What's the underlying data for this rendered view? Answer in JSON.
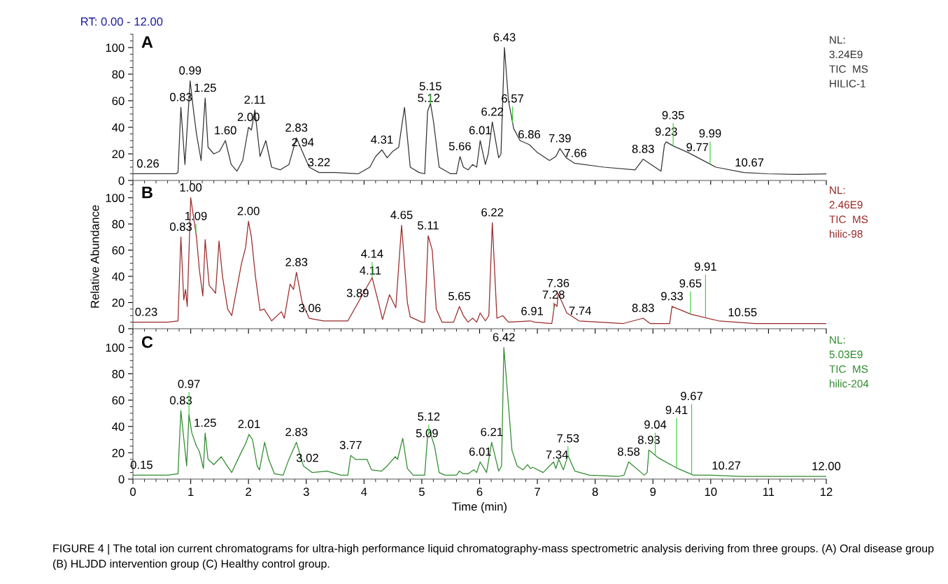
{
  "chart_data": [
    {
      "type": "line",
      "title": "A",
      "color": "#333333",
      "x": [
        0,
        0.3,
        0.6,
        0.75,
        0.78,
        0.83,
        0.9,
        0.99,
        1.05,
        1.1,
        1.18,
        1.25,
        1.3,
        1.4,
        1.5,
        1.6,
        1.7,
        1.8,
        1.9,
        2.0,
        2.05,
        2.11,
        2.2,
        2.3,
        2.4,
        2.55,
        2.7,
        2.83,
        2.94,
        3.05,
        3.22,
        3.5,
        3.9,
        4.1,
        4.2,
        4.31,
        4.4,
        4.5,
        4.6,
        4.7,
        4.8,
        4.95,
        5.05,
        5.1,
        5.15,
        5.2,
        5.3,
        5.5,
        5.6,
        5.66,
        5.72,
        5.8,
        5.88,
        5.95,
        6.01,
        6.1,
        6.15,
        6.22,
        6.33,
        6.37,
        6.43,
        6.5,
        6.59,
        6.7,
        6.86,
        7.0,
        7.21,
        7.32,
        7.39,
        7.5,
        7.64,
        8.15,
        8.69,
        8.83,
        8.9,
        9.14,
        9.2,
        9.23,
        9.35,
        9.61,
        10.09,
        10.57,
        10.98,
        11.5,
        12
      ],
      "values": [
        5,
        5,
        5,
        5,
        6,
        55,
        12,
        75,
        52,
        35,
        15,
        62,
        25,
        20,
        22,
        30,
        12,
        7,
        15,
        40,
        38,
        53,
        18,
        30,
        10,
        8,
        12,
        32,
        21,
        10,
        6,
        6,
        5,
        10,
        18,
        23,
        17,
        22,
        25,
        55,
        10,
        6,
        5,
        52,
        58,
        45,
        10,
        5,
        5,
        18,
        10,
        8,
        12,
        10,
        30,
        12,
        20,
        44,
        17,
        20,
        100,
        60,
        39,
        30,
        27,
        21,
        15,
        18,
        24,
        17,
        13,
        10,
        8,
        16,
        14,
        7,
        27,
        29,
        26,
        21,
        10,
        6,
        5,
        4.5,
        5
      ],
      "xlim": [
        0,
        12
      ],
      "xticks": [
        0,
        1,
        2,
        3,
        4,
        5,
        6,
        7,
        8,
        9,
        10,
        11,
        12
      ],
      "ylim": [
        0,
        110
      ],
      "yticks": [
        0,
        20,
        40,
        60,
        80,
        100
      ],
      "tick_labels": "y",
      "annotations": [
        "NL:\n3.24E9\nTIC  MS\nHILIC-1",
        "RT: 0.00 - 12.00",
        {
          "text": "0.26",
          "x": 0.26,
          "y": 5
        },
        {
          "text": "0.83",
          "x": 0.83,
          "y": 55
        },
        {
          "text": "0.99",
          "x": 0.99,
          "y": 75
        },
        {
          "text": "1.25",
          "x": 1.25,
          "y": 62
        },
        {
          "text": "1.60",
          "x": 1.6,
          "y": 30
        },
        {
          "text": "2.00",
          "x": 2.0,
          "y": 40
        },
        {
          "text": "2.11",
          "x": 2.11,
          "y": 53
        },
        {
          "text": "2.83",
          "x": 2.83,
          "y": 32
        },
        {
          "text": "2.94",
          "x": 2.94,
          "y": 21
        },
        {
          "text": "3.22",
          "x": 3.22,
          "y": 6
        },
        {
          "text": "4.31",
          "x": 4.31,
          "y": 23
        },
        {
          "text": "5.12",
          "x": 5.12,
          "y": 54.4
        },
        {
          "text": "5.15",
          "x": 5.15,
          "y": 58
        },
        {
          "text": "5.66",
          "x": 5.66,
          "y": 18
        },
        {
          "text": "6.01",
          "x": 6.01,
          "y": 30
        },
        {
          "text": "6.22",
          "x": 6.22,
          "y": 44
        },
        {
          "text": "6.43",
          "x": 6.43,
          "y": 100
        },
        {
          "text": "6.57",
          "x": 6.57,
          "y": 43.7
        },
        {
          "text": "6.86",
          "x": 6.86,
          "y": 27
        },
        {
          "text": "7.39",
          "x": 7.39,
          "y": 24
        },
        {
          "text": "7.66",
          "x": 7.66,
          "y": 12.9
        },
        {
          "text": "8.83",
          "x": 8.83,
          "y": 16
        },
        {
          "text": "9.23",
          "x": 9.23,
          "y": 29
        },
        {
          "text": "9.35",
          "x": 9.35,
          "y": 26
        },
        {
          "text": "9.77",
          "x": 9.77,
          "y": 17.3
        },
        {
          "text": "9.99",
          "x": 9.99,
          "y": 12.3
        },
        {
          "text": "10.67",
          "x": 10.67,
          "y": 5.8
        }
      ]
    },
    {
      "type": "line",
      "title": "B",
      "color": "#9b2a2a",
      "ylabel": "Relative Abundance",
      "x": [
        0,
        0.3,
        0.6,
        0.78,
        0.83,
        0.88,
        0.91,
        0.94,
        1.0,
        1.05,
        1.1,
        1.15,
        1.21,
        1.25,
        1.32,
        1.38,
        1.43,
        1.49,
        1.55,
        1.64,
        1.71,
        1.88,
        1.95,
        2.0,
        2.05,
        2.12,
        2.2,
        2.27,
        2.4,
        2.57,
        2.62,
        2.72,
        2.78,
        2.83,
        2.93,
        3.05,
        3.3,
        3.72,
        4.14,
        4.25,
        4.32,
        4.44,
        4.55,
        4.65,
        4.75,
        4.8,
        5.0,
        5.05,
        5.11,
        5.18,
        5.25,
        5.35,
        5.55,
        5.65,
        5.72,
        5.8,
        5.88,
        5.95,
        6.01,
        6.1,
        6.16,
        6.22,
        6.3,
        6.4,
        6.5,
        6.88,
        6.95,
        7.25,
        7.3,
        7.34,
        7.36,
        7.51,
        7.72,
        8.49,
        8.83,
        8.95,
        9.29,
        9.33,
        9.66,
        10.14,
        10.77,
        11.5,
        12
      ],
      "values": [
        5,
        5,
        5,
        6,
        70,
        22,
        30,
        17,
        100,
        85,
        70,
        45,
        25,
        68,
        33,
        30,
        27,
        67,
        40,
        15,
        10,
        50,
        62,
        82,
        70,
        40,
        14,
        15,
        6,
        13,
        8,
        34,
        30,
        43,
        20,
        8,
        6,
        6,
        39,
        20,
        7,
        26,
        16,
        79,
        20,
        9,
        5,
        5,
        71,
        60,
        15,
        5,
        5,
        17,
        10,
        5,
        8,
        5,
        12,
        6,
        10,
        81,
        8,
        10,
        5,
        6,
        5,
        4,
        19,
        17,
        27,
        12,
        6,
        4,
        8,
        4,
        4,
        17,
        11,
        6,
        4,
        4,
        4
      ],
      "xlim": [
        0,
        12
      ],
      "xticks": [
        0,
        1,
        2,
        3,
        4,
        5,
        6,
        7,
        8,
        9,
        10,
        11,
        12
      ],
      "ylim": [
        0,
        110
      ],
      "yticks": [
        0,
        20,
        40,
        60,
        80,
        100
      ],
      "tick_labels": "y",
      "annotations": [
        "NL:\n2.46E9\nTIC  MS\nhilic-98",
        {
          "text": "0.23",
          "x": 0.23,
          "y": 5
        },
        {
          "text": "0.83",
          "x": 0.83,
          "y": 70
        },
        {
          "text": "1.00",
          "x": 1.0,
          "y": 100
        },
        {
          "text": "1.09",
          "x": 1.09,
          "y": 73
        },
        {
          "text": "2.00",
          "x": 2.0,
          "y": 82
        },
        {
          "text": "2.83",
          "x": 2.83,
          "y": 43
        },
        {
          "text": "3.06",
          "x": 3.06,
          "y": 7.9
        },
        {
          "text": "3.89",
          "x": 3.89,
          "y": 19.4
        },
        {
          "text": "4.11",
          "x": 4.11,
          "y": 36.6
        },
        {
          "text": "4.14",
          "x": 4.14,
          "y": 39
        },
        {
          "text": "4.65",
          "x": 4.65,
          "y": 79
        },
        {
          "text": "5.11",
          "x": 5.11,
          "y": 71
        },
        {
          "text": "5.65",
          "x": 5.65,
          "y": 17
        },
        {
          "text": "6.22",
          "x": 6.22,
          "y": 81
        },
        {
          "text": "6.91",
          "x": 6.91,
          "y": 5.6
        },
        {
          "text": "7.28",
          "x": 7.28,
          "y": 13
        },
        {
          "text": "7.36",
          "x": 7.36,
          "y": 27
        },
        {
          "text": "7.74",
          "x": 7.74,
          "y": 5.9
        },
        {
          "text": "8.83",
          "x": 8.83,
          "y": 8
        },
        {
          "text": "9.33",
          "x": 9.33,
          "y": 17
        },
        {
          "text": "9.65",
          "x": 9.65,
          "y": 11.2
        },
        {
          "text": "9.91",
          "x": 9.91,
          "y": 8.4
        },
        {
          "text": "10.55",
          "x": 10.55,
          "y": 4.7
        }
      ]
    },
    {
      "type": "line",
      "title": "C",
      "color": "#2e8b2e",
      "xlabel": "Time (min)",
      "x": [
        0,
        0.3,
        0.6,
        0.78,
        0.83,
        0.93,
        0.97,
        1.02,
        1.1,
        1.15,
        1.22,
        1.25,
        1.3,
        1.4,
        1.53,
        1.6,
        1.71,
        1.87,
        1.95,
        2.01,
        2.07,
        2.15,
        2.19,
        2.28,
        2.35,
        2.45,
        2.6,
        2.69,
        2.83,
        2.95,
        3.1,
        3.36,
        3.6,
        3.72,
        3.77,
        3.85,
        4.05,
        4.13,
        4.3,
        4.4,
        4.54,
        4.58,
        4.67,
        4.75,
        4.85,
        5.05,
        5.1,
        5.14,
        5.22,
        5.3,
        5.4,
        5.6,
        5.65,
        5.72,
        5.8,
        5.9,
        5.95,
        6.01,
        6.12,
        6.21,
        6.33,
        6.38,
        6.42,
        6.52,
        6.56,
        6.65,
        6.75,
        6.83,
        6.88,
        6.92,
        7.1,
        7.28,
        7.32,
        7.37,
        7.45,
        7.53,
        7.65,
        7.9,
        8.4,
        8.5,
        8.58,
        8.85,
        8.9,
        8.93,
        9.1,
        9.43,
        9.7,
        10,
        10.5,
        11,
        12
      ],
      "values": [
        3,
        3,
        3,
        4,
        52,
        10,
        49,
        35,
        25,
        21,
        8,
        35,
        15,
        11,
        17,
        12,
        5,
        20,
        27,
        34,
        30,
        10,
        7,
        28,
        15,
        4,
        3,
        14,
        28,
        10,
        5,
        6,
        3,
        3,
        18,
        15,
        15,
        7,
        6,
        10,
        17,
        15,
        31,
        8,
        3,
        3,
        33,
        36,
        25,
        5,
        3,
        3,
        6,
        4,
        4,
        7,
        5,
        13,
        5,
        28,
        6,
        10,
        100,
        45,
        22,
        10,
        7,
        11,
        8,
        9,
        5,
        13,
        8,
        15,
        7,
        18,
        6,
        3,
        2,
        3,
        13,
        3,
        5,
        22,
        16,
        8,
        3,
        3,
        2,
        2,
        2
      ],
      "xlim": [
        0,
        12
      ],
      "xticks": [
        0,
        1,
        2,
        3,
        4,
        5,
        6,
        7,
        8,
        9,
        10,
        11,
        12
      ],
      "ylim": [
        0,
        110
      ],
      "yticks": [
        0,
        20,
        40,
        60,
        80,
        100
      ],
      "annotations": [
        "NL:\n5.03E9\nTIC  MS\nhilic-204",
        "FIGURE 4 | The total ion current chromatograms for ultra-high performance liquid chromatography-mass spectrometric analysis deriving from three groups. (A) Oral disease group (B) HLJDD intervention group (C) Healthy control group.",
        {
          "text": "0.15",
          "x": 0.15,
          "y": 3
        },
        {
          "text": "0.83",
          "x": 0.83,
          "y": 52
        },
        {
          "text": "0.97",
          "x": 0.97,
          "y": 49
        },
        {
          "text": "1.25",
          "x": 1.25,
          "y": 35
        },
        {
          "text": "2.01",
          "x": 2.01,
          "y": 34
        },
        {
          "text": "2.83",
          "x": 2.83,
          "y": 28
        },
        {
          "text": "3.02",
          "x": 3.02,
          "y": 8.3
        },
        {
          "text": "3.77",
          "x": 3.77,
          "y": 18
        },
        {
          "text": "5.09",
          "x": 5.09,
          "y": 27
        },
        {
          "text": "5.12",
          "x": 5.12,
          "y": 34.5
        },
        {
          "text": "6.01",
          "x": 6.01,
          "y": 13
        },
        {
          "text": "6.21",
          "x": 6.21,
          "y": 28
        },
        {
          "text": "6.42",
          "x": 6.42,
          "y": 100
        },
        {
          "text": "7.34",
          "x": 7.34,
          "y": 10.8
        },
        {
          "text": "7.53",
          "x": 7.53,
          "y": 18
        },
        {
          "text": "8.58",
          "x": 8.58,
          "y": 13
        },
        {
          "text": "8.93",
          "x": 8.93,
          "y": 22
        },
        {
          "text": "9.04",
          "x": 9.04,
          "y": 18.1
        },
        {
          "text": "9.41",
          "x": 9.41,
          "y": 8.5
        },
        {
          "text": "9.67",
          "x": 9.67,
          "y": 3.6
        },
        {
          "text": "10.27",
          "x": 10.27,
          "y": 2.5
        },
        {
          "text": "12.00",
          "x": 12,
          "y": 2
        }
      ]
    }
  ]
}
